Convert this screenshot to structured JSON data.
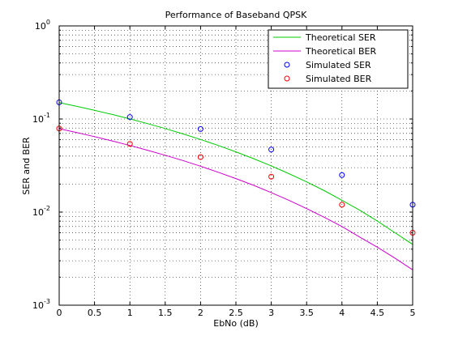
{
  "chart_data": {
    "type": "line",
    "title": "Performance of Baseband QPSK",
    "xlabel": "EbNo (dB)",
    "ylabel": "SER and BER",
    "xlim": [
      0,
      5
    ],
    "ylim": [
      0.001,
      1
    ],
    "yscale": "log",
    "grid": true,
    "grid_style": "dotted",
    "legend_position": "top-right",
    "x_ticks": [
      0,
      0.5,
      1,
      1.5,
      2,
      2.5,
      3,
      3.5,
      4,
      4.5,
      5
    ],
    "x_tick_labels": [
      "0",
      "0.5",
      "1",
      "1.5",
      "2",
      "2.5",
      "3",
      "3.5",
      "4",
      "4.5",
      "5"
    ],
    "y_tick_labels": [
      {
        "value": 1,
        "base": "10",
        "exp": "0"
      },
      {
        "value": 0.1,
        "base": "10",
        "exp": "-1"
      },
      {
        "value": 0.01,
        "base": "10",
        "exp": "-2"
      },
      {
        "value": 0.001,
        "base": "10",
        "exp": "-3"
      }
    ],
    "series": [
      {
        "name": "Theoretical SER",
        "kind": "line",
        "color": "#00cc00",
        "x": [
          0,
          0.25,
          0.5,
          0.75,
          1,
          1.25,
          1.5,
          1.75,
          2,
          2.25,
          2.5,
          2.75,
          3,
          3.25,
          3.5,
          3.75,
          4,
          4.25,
          4.5,
          4.75,
          5
        ],
        "y": [
          0.15,
          0.1367,
          0.124,
          0.1118,
          0.1002,
          0.0892,
          0.0789,
          0.0692,
          0.0603,
          0.052,
          0.0444,
          0.0375,
          0.0314,
          0.0259,
          0.0211,
          0.017,
          0.0134,
          0.0105,
          0.008,
          0.006,
          0.0045
        ]
      },
      {
        "name": "Theoretical BER",
        "kind": "line",
        "color": "#cc00cc",
        "x": [
          0,
          0.25,
          0.5,
          0.75,
          1,
          1.25,
          1.5,
          1.75,
          2,
          2.25,
          2.5,
          2.75,
          3,
          3.25,
          3.5,
          3.75,
          4,
          4.25,
          4.5,
          4.75,
          5
        ],
        "y": [
          0.0786,
          0.0714,
          0.0646,
          0.0581,
          0.052,
          0.0462,
          0.0408,
          0.0358,
          0.0311,
          0.0268,
          0.0229,
          0.0194,
          0.0162,
          0.0134,
          0.0109,
          0.0088,
          0.007,
          0.0054,
          0.0042,
          0.0032,
          0.0024
        ]
      },
      {
        "name": "Simulated SER",
        "kind": "marker",
        "color": "#0000ff",
        "x": [
          0,
          1,
          2,
          3,
          4,
          5
        ],
        "y": [
          0.151,
          0.105,
          0.078,
          0.047,
          0.025,
          0.012
        ]
      },
      {
        "name": "Simulated BER",
        "kind": "marker",
        "color": "#ff0000",
        "x": [
          0,
          1,
          2,
          3,
          4,
          5
        ],
        "y": [
          0.079,
          0.054,
          0.039,
          0.024,
          0.012,
          0.006
        ]
      }
    ]
  }
}
